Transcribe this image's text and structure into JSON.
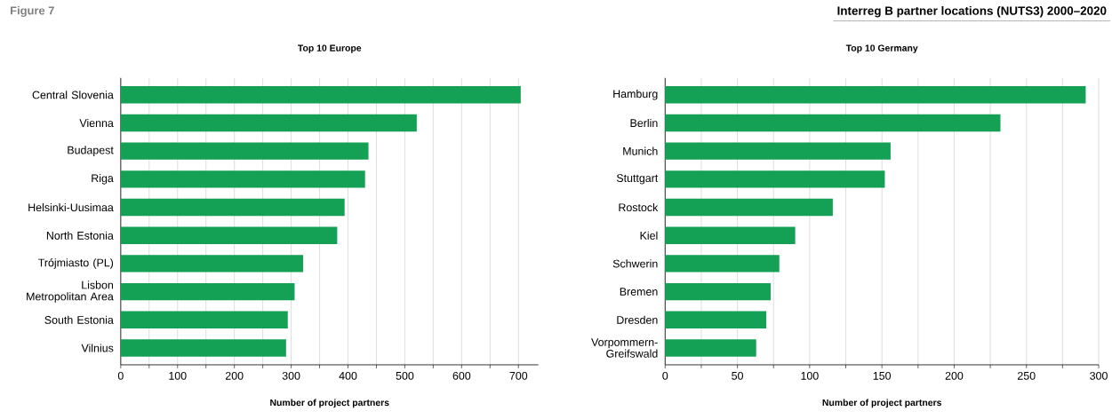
{
  "chart_data": [
    {
      "type": "bar",
      "orientation": "horizontal",
      "title": "Top 10 Europe",
      "xlabel": "Number of project partners",
      "annotations": [
        "Figure 7"
      ],
      "categories": [
        "Central Slovenia",
        "Vienna",
        "Budapest",
        "Riga",
        "Helsinki-Uusimaa",
        "North Estonia",
        "Trójmiasto (PL)",
        "Lisbon Metropolitan Area",
        "South Estonia",
        "Vilnius"
      ],
      "values": [
        704,
        521,
        436,
        430,
        394,
        381,
        321,
        306,
        294,
        291
      ],
      "color": "#14a155",
      "xlim": [
        0,
        735
      ],
      "xticks": [
        0,
        {
          "value": 50,
          "label": null
        },
        100,
        {
          "value": 150,
          "label": null
        },
        200,
        {
          "value": 250,
          "label": null
        },
        300,
        {
          "value": 350,
          "label": null
        },
        400,
        {
          "value": 450,
          "label": null
        },
        500,
        {
          "value": 550,
          "label": null
        },
        600,
        {
          "value": 650,
          "label": null
        },
        700
      ],
      "grid": "x"
    },
    {
      "type": "bar",
      "orientation": "horizontal",
      "title": "Top 10 Germany",
      "xlabel": "Number of project partners",
      "annotations": [
        "Interreg B partner locations (NUTS3) 2000–2020"
      ],
      "categories": [
        "Hamburg",
        "Berlin",
        "Munich",
        "Stuttgart",
        "Rostock",
        "Kiel",
        "Schwerin",
        "Bremen",
        "Dresden",
        "Vorpommern-Greifswald"
      ],
      "values": [
        291,
        232,
        156,
        152,
        116,
        90,
        79,
        73,
        70,
        63
      ],
      "color": "#14a155",
      "xlim": [
        0,
        300
      ],
      "xticks": [
        0,
        {
          "value": 25,
          "label": null
        },
        50,
        {
          "value": 75,
          "label": null
        },
        100,
        {
          "value": 125,
          "label": null
        },
        150,
        {
          "value": 175,
          "label": null
        },
        200,
        {
          "value": 225,
          "label": null
        },
        250,
        {
          "value": 275,
          "label": null
        },
        300
      ],
      "grid": "x"
    }
  ]
}
